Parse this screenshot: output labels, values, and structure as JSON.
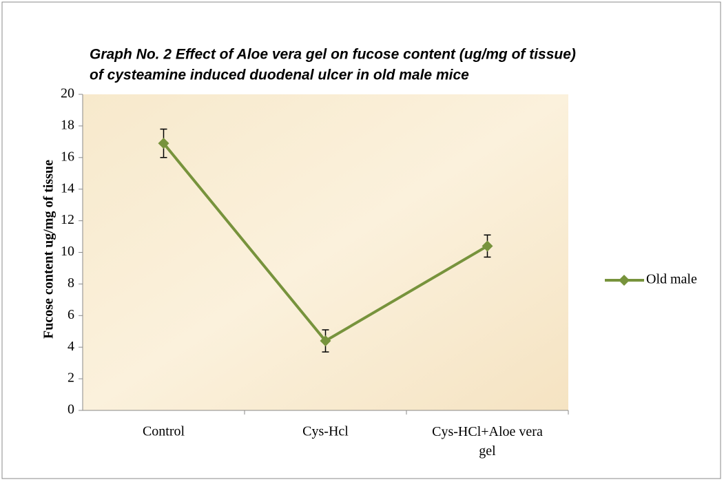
{
  "chart_data": {
    "type": "line",
    "title": [
      "Graph No. 2  Effect of Aloe vera  gel on fucose content (ug/mg of tissue)",
      "of cysteamine induced duodenal ulcer in old male mice"
    ],
    "y_label": "Fucose content ug/mg of tissue",
    "categories": [
      "Control",
      "Cys-Hcl",
      "Cys-HCl+Aloe vera gel"
    ],
    "series": [
      {
        "name": "Old male",
        "color": "#77933c",
        "values": [
          16.9,
          4.4,
          10.4
        ],
        "errors": [
          0.9,
          0.7,
          0.7
        ]
      }
    ],
    "ylim": [
      0,
      20
    ],
    "yticks": [
      0,
      2,
      4,
      6,
      8,
      10,
      12,
      14,
      16,
      18,
      20
    ],
    "legend": "right"
  }
}
